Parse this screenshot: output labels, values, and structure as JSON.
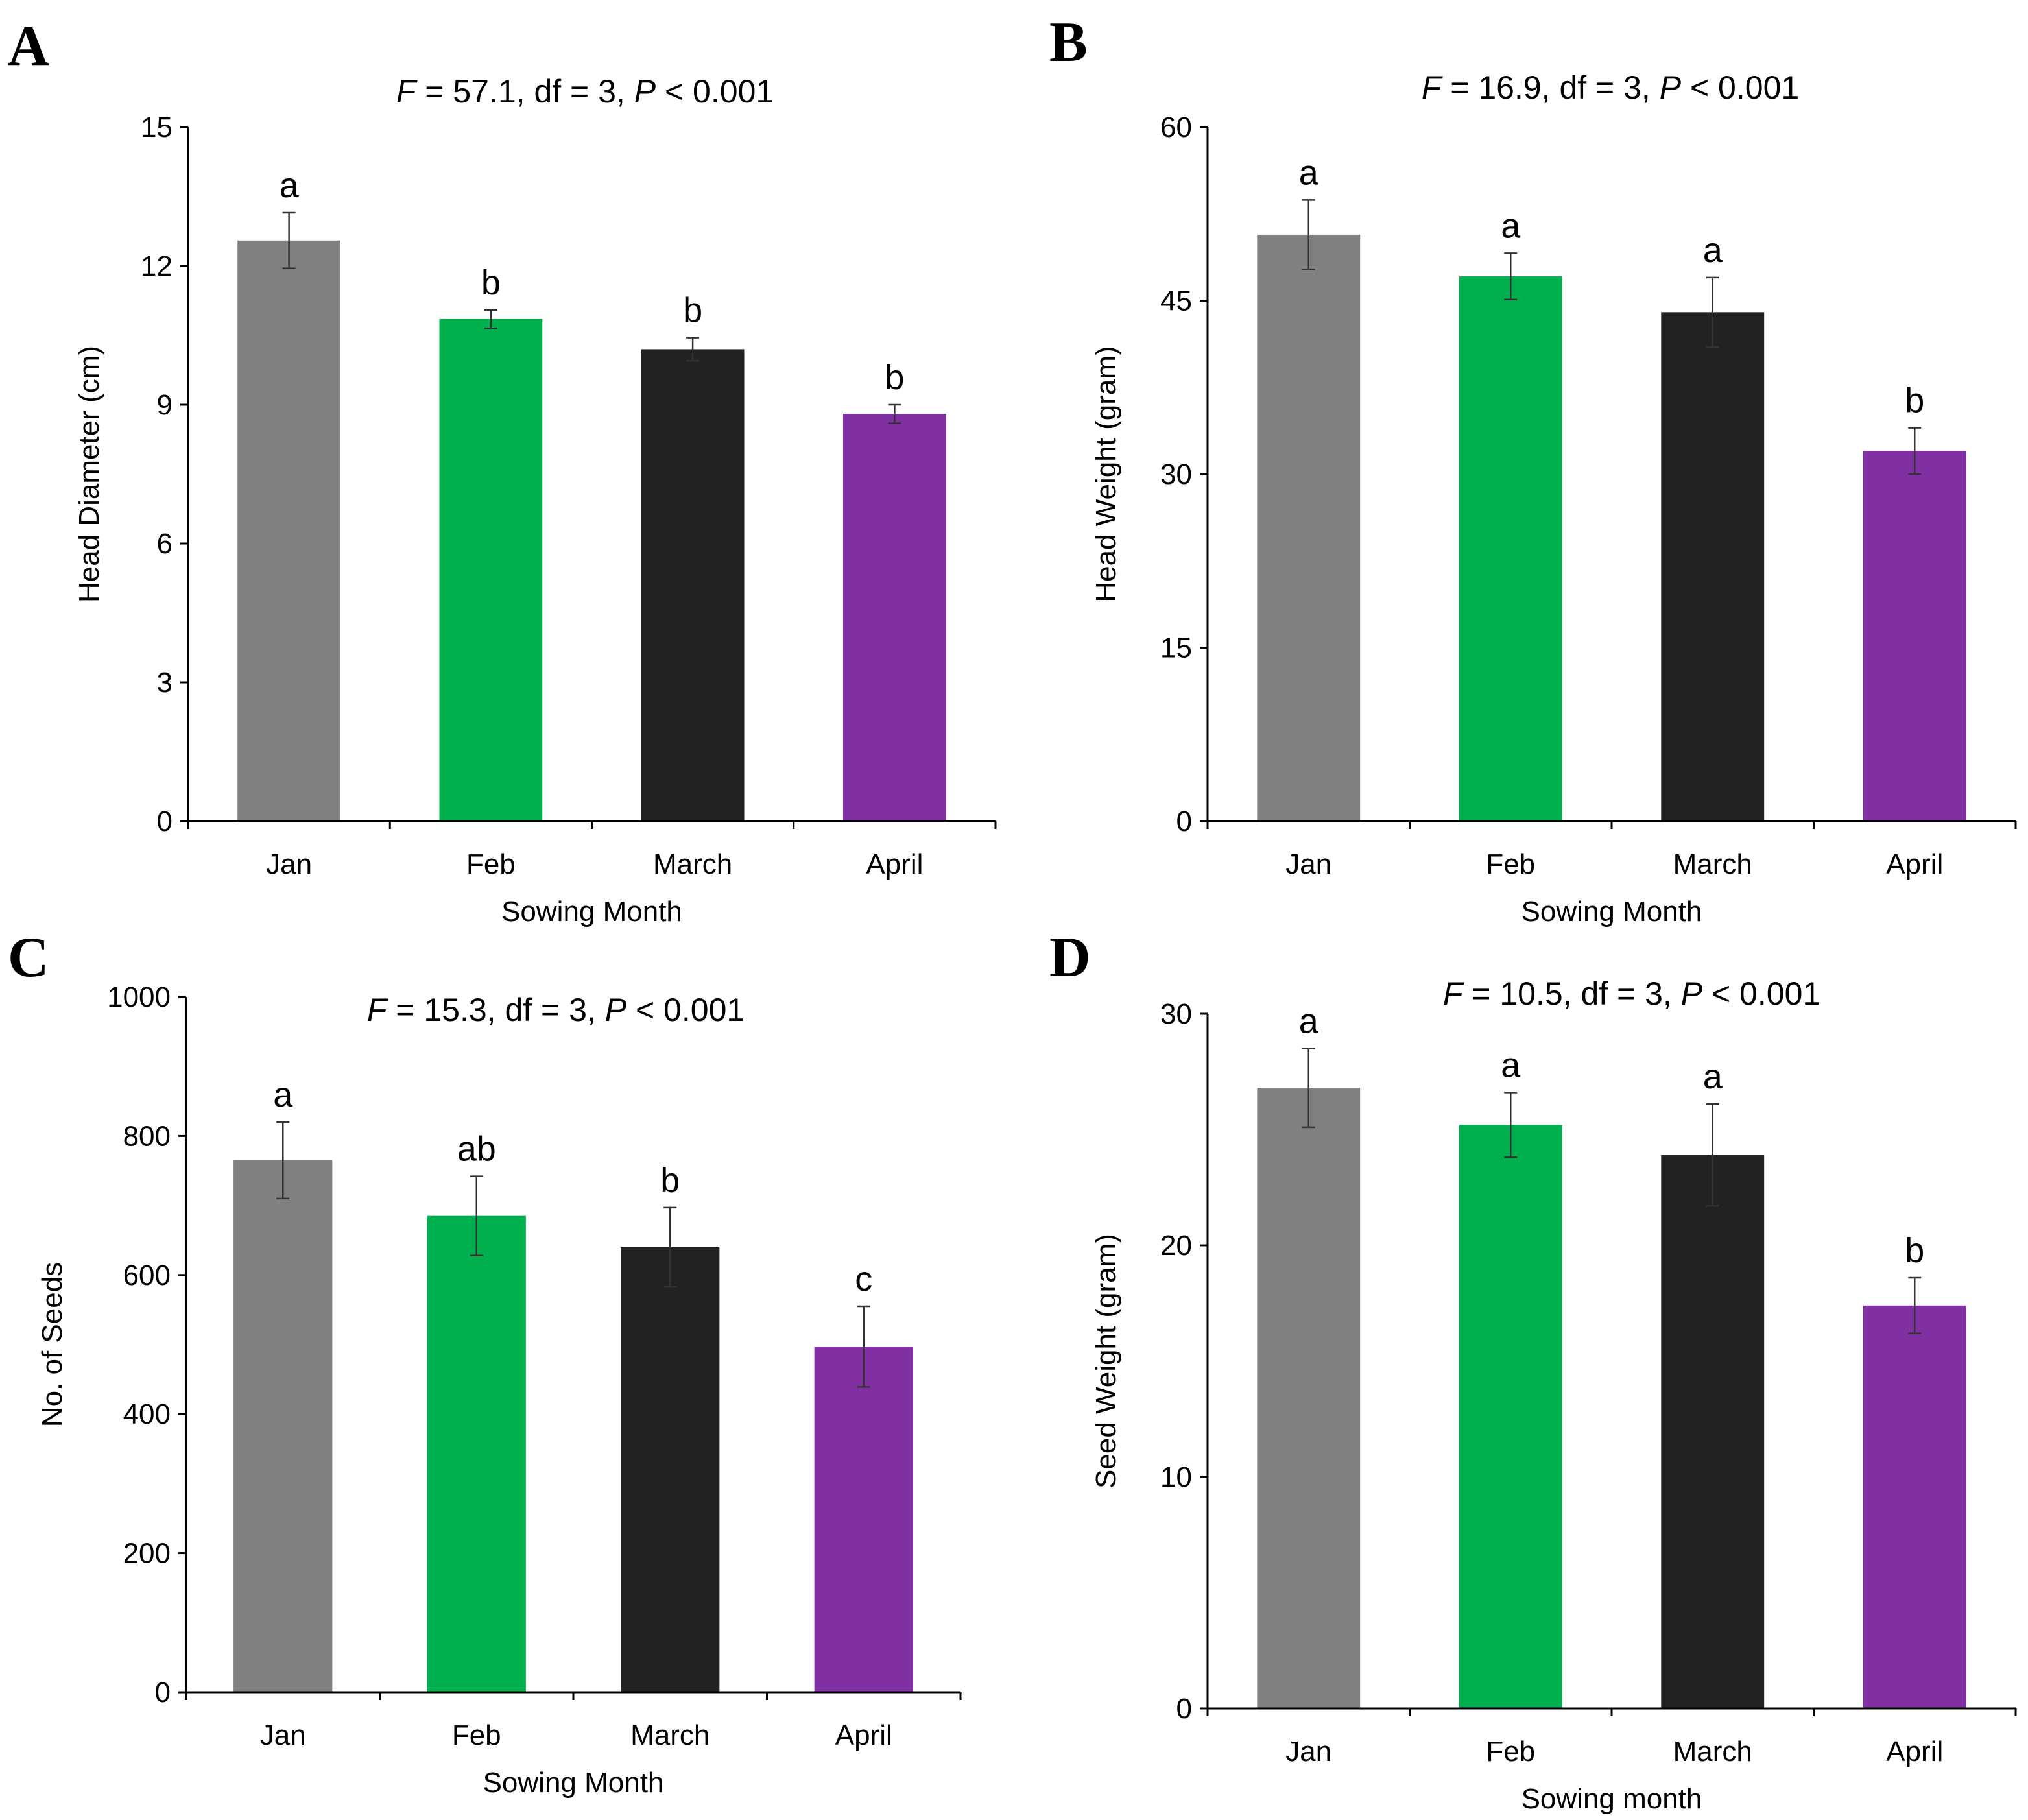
{
  "colors": {
    "gray": "#808080",
    "green": "#00b04f",
    "black": "#222222",
    "purple": "#8030a3"
  },
  "chart_data": [
    {
      "type": "bar",
      "panel": "A",
      "title_parts": [
        "F",
        " = 57.1, df = 3, ",
        "P",
        " < 0.001"
      ],
      "title": "F = 57.1, df = 3, P < 0.001",
      "xlabel": "Sowing Month",
      "ylabel": "Head Diameter (cm)",
      "categories": [
        "Jan",
        "Feb",
        "March",
        "April"
      ],
      "values": [
        12.55,
        10.85,
        10.2,
        8.8
      ],
      "errors": [
        0.6,
        0.2,
        0.25,
        0.2
      ],
      "significance": [
        "a",
        "b",
        "b",
        "b"
      ],
      "ylim": [
        0,
        15
      ],
      "yticks": [
        0,
        3,
        6,
        9,
        12,
        15
      ],
      "ytick_labels": [
        "0",
        "3",
        "6",
        "9",
        "12",
        "15"
      ],
      "bar_colors": [
        "gray",
        "green",
        "black",
        "purple"
      ]
    },
    {
      "type": "bar",
      "panel": "B",
      "title_parts": [
        "F",
        " = 16.9, df = 3, ",
        "P",
        " < 0.001"
      ],
      "title": "F = 16.9, df = 3, P < 0.001",
      "xlabel": "Sowing Month",
      "ylabel": "Head Weight (gram)",
      "categories": [
        "Jan",
        "Feb",
        "March",
        "April"
      ],
      "values": [
        50.7,
        47.1,
        44.0,
        32.0
      ],
      "errors": [
        3.0,
        2.0,
        3.0,
        2.0
      ],
      "significance": [
        "a",
        "a",
        "a",
        "b"
      ],
      "ylim": [
        0,
        60
      ],
      "yticks": [
        0,
        15,
        30,
        45,
        60
      ],
      "ytick_labels": [
        "0",
        "15",
        "30",
        "45",
        "60"
      ],
      "bar_colors": [
        "gray",
        "green",
        "black",
        "purple"
      ]
    },
    {
      "type": "bar",
      "panel": "C",
      "title_parts": [
        "F",
        " = 15.3, df = 3, ",
        "P",
        " < 0.001"
      ],
      "title": "F = 15.3, df = 3, P < 0.001",
      "xlabel": "Sowing Month",
      "ylabel": "No. of Seeds",
      "categories": [
        "Jan",
        "Feb",
        "March",
        "April"
      ],
      "values": [
        765,
        685,
        640,
        497
      ],
      "errors": [
        55,
        57,
        57,
        58
      ],
      "significance": [
        "a",
        "ab",
        "b",
        "c"
      ],
      "ylim": [
        0,
        1000
      ],
      "yticks": [
        0,
        200,
        400,
        600,
        800,
        1000
      ],
      "ytick_labels": [
        "0",
        "200",
        "400",
        "600",
        "800",
        "1000"
      ],
      "bar_colors": [
        "gray",
        "green",
        "black",
        "purple"
      ]
    },
    {
      "type": "bar",
      "panel": "D",
      "title_parts": [
        "F",
        " = 10.5, df = 3, ",
        "P",
        " < 0.001"
      ],
      "title": "F = 10.5, df = 3, P < 0.001",
      "xlabel": "Sowing month",
      "ylabel": "Seed Weight (gram)",
      "categories": [
        "Jan",
        "Feb",
        "March",
        "April"
      ],
      "values": [
        26.8,
        25.2,
        23.9,
        17.4
      ],
      "errors": [
        1.7,
        1.4,
        2.2,
        1.2
      ],
      "significance": [
        "a",
        "a",
        "a",
        "b"
      ],
      "ylim": [
        0,
        30
      ],
      "yticks": [
        0,
        10,
        20,
        30
      ],
      "ytick_labels": [
        "0",
        "10",
        "20",
        "30"
      ],
      "bar_colors": [
        "gray",
        "green",
        "black",
        "purple"
      ]
    }
  ]
}
